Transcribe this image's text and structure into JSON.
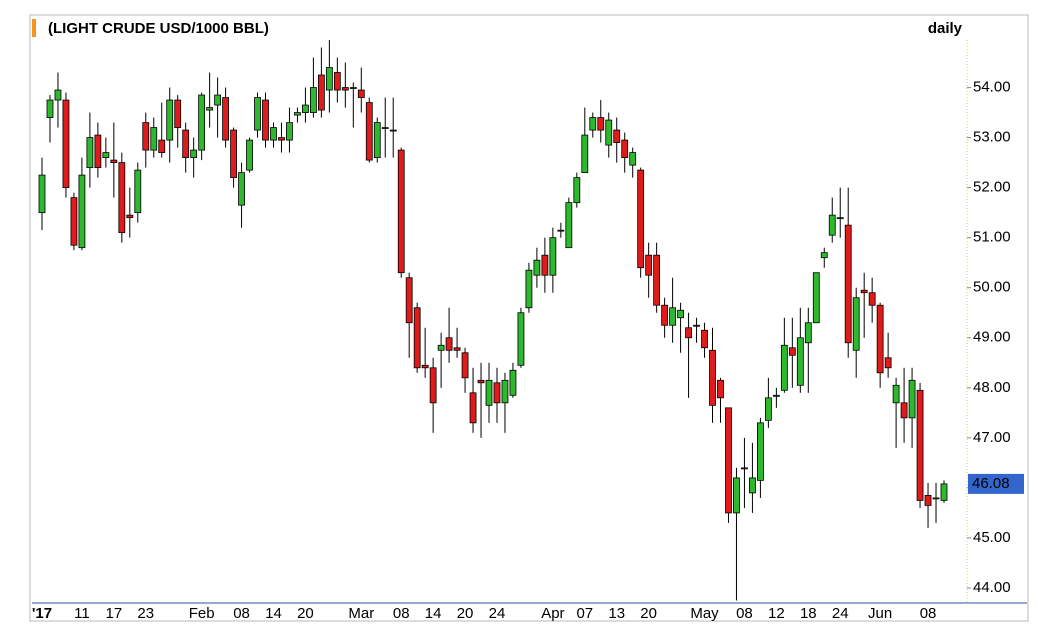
{
  "chart_data": {
    "type": "candlestick",
    "title": "(LIGHT CRUDE USD/1000 BBL)",
    "interval": "daily",
    "up_color": "#2db82d",
    "down_color": "#e01b1b",
    "grid": false,
    "ylim": [
      43.7,
      54.95
    ],
    "yticks": [
      {
        "value": 44,
        "label": "44.00"
      },
      {
        "value": 45,
        "label": "45.00"
      },
      {
        "value": 46,
        "label": "46.00"
      },
      {
        "value": 47,
        "label": "47.00"
      },
      {
        "value": 48,
        "label": "48.00"
      },
      {
        "value": 49,
        "label": "49.00"
      },
      {
        "value": 50,
        "label": "50.00"
      },
      {
        "value": 51,
        "label": "51.00"
      },
      {
        "value": 52,
        "label": "52.00"
      },
      {
        "value": 53,
        "label": "53.00"
      },
      {
        "value": 54,
        "label": "54.00"
      }
    ],
    "categories": [
      "'17",
      null,
      null,
      null,
      null,
      "11",
      null,
      null,
      null,
      "17",
      null,
      null,
      null,
      "23",
      null,
      null,
      null,
      null,
      null,
      null,
      "Feb",
      null,
      null,
      null,
      null,
      "08",
      null,
      null,
      null,
      "14",
      null,
      null,
      null,
      "20",
      null,
      null,
      null,
      null,
      null,
      null,
      "Mar",
      null,
      null,
      null,
      null,
      "08",
      null,
      null,
      null,
      "14",
      null,
      null,
      null,
      "20",
      null,
      null,
      null,
      "24",
      null,
      null,
      null,
      null,
      null,
      null,
      "Apr",
      null,
      null,
      null,
      "07",
      null,
      null,
      null,
      "13",
      null,
      null,
      null,
      "20",
      null,
      null,
      null,
      null,
      null,
      null,
      "May",
      null,
      null,
      null,
      null,
      "08",
      null,
      null,
      null,
      "12",
      null,
      null,
      null,
      "18",
      null,
      null,
      null,
      "24",
      null,
      null,
      null,
      null,
      "Jun",
      null,
      null,
      null,
      null,
      null,
      "08",
      null,
      null
    ],
    "open": [
      51.5,
      53.4,
      53.75,
      53.75,
      51.8,
      50.8,
      52.4,
      53.05,
      52.6,
      52.55,
      52.5,
      51.45,
      51.5,
      53.3,
      52.75,
      52.95,
      52.95,
      53.75,
      53.15,
      52.6,
      52.75,
      53.55,
      53.65,
      53.8,
      53.15,
      51.65,
      52.35,
      53.15,
      53.75,
      52.95,
      53.0,
      52.95,
      53.45,
      53.5,
      53.5,
      54.25,
      53.95,
      54.3,
      54.0,
      53.98,
      53.95,
      53.7,
      52.6,
      53.2,
      53.15,
      52.75,
      50.2,
      49.6,
      48.45,
      48.4,
      48.75,
      49.0,
      48.8,
      48.7,
      47.9,
      48.15,
      47.65,
      48.1,
      47.7,
      47.85,
      48.45,
      49.6,
      50.25,
      50.65,
      50.25,
      51.15,
      50.8,
      51.7,
      52.3,
      53.15,
      53.4,
      52.85,
      53.15,
      52.95,
      52.45,
      52.35,
      50.65,
      50.65,
      49.65,
      49.25,
      49.4,
      49.2,
      49.25,
      49.15,
      48.75,
      48.15,
      47.6,
      45.5,
      46.4,
      45.9,
      46.15,
      47.35,
      47.85,
      47.95,
      48.8,
      48.05,
      48.9,
      49.3,
      50.6,
      51.05,
      51.4,
      51.25,
      48.75,
      49.95,
      49.9,
      49.65,
      48.6,
      47.7,
      47.7,
      47.4,
      47.95,
      45.85,
      45.8,
      45.75
    ],
    "high": [
      52.6,
      53.85,
      54.3,
      53.9,
      51.9,
      52.6,
      53.5,
      53.3,
      53.0,
      53.3,
      52.7,
      52.0,
      52.5,
      53.5,
      53.4,
      53.7,
      54.0,
      53.85,
      53.3,
      53.0,
      53.9,
      54.3,
      54.2,
      54.0,
      53.2,
      52.5,
      53.0,
      53.9,
      53.9,
      53.3,
      53.3,
      53.6,
      53.6,
      54.0,
      54.6,
      54.8,
      54.95,
      54.6,
      54.5,
      54.1,
      54.4,
      53.8,
      53.4,
      53.8,
      53.8,
      52.8,
      50.3,
      49.7,
      49.2,
      48.6,
      49.1,
      49.6,
      49.2,
      48.8,
      48.4,
      48.5,
      48.5,
      48.4,
      48.3,
      48.5,
      49.6,
      50.5,
      50.8,
      51.0,
      51.2,
      51.3,
      51.8,
      52.3,
      53.6,
      53.5,
      53.75,
      53.5,
      53.4,
      53.1,
      52.8,
      52.4,
      50.9,
      50.9,
      49.8,
      50.2,
      49.7,
      49.5,
      49.4,
      49.3,
      49.2,
      48.2,
      47.6,
      46.4,
      47.0,
      46.9,
      47.4,
      48.2,
      48.0,
      49.4,
      49.4,
      49.6,
      49.6,
      50.3,
      50.8,
      51.8,
      52.0,
      52.0,
      50.0,
      50.3,
      50.2,
      49.7,
      49.1,
      48.2,
      48.4,
      48.4,
      48.1,
      46.1,
      46.1,
      46.15
    ],
    "low": [
      51.15,
      52.9,
      53.2,
      51.8,
      50.75,
      50.75,
      52.0,
      52.2,
      52.4,
      51.8,
      50.9,
      51.0,
      51.3,
      52.4,
      52.6,
      52.6,
      52.5,
      52.8,
      52.3,
      52.2,
      52.55,
      53.2,
      53.0,
      52.8,
      52.0,
      51.2,
      52.3,
      53.0,
      52.8,
      52.8,
      52.7,
      52.7,
      53.3,
      53.3,
      53.4,
      53.4,
      53.5,
      53.7,
      53.6,
      53.2,
      53.5,
      52.5,
      52.5,
      52.6,
      52.6,
      50.2,
      48.6,
      48.3,
      48.2,
      47.1,
      48.0,
      48.5,
      48.6,
      47.9,
      47.1,
      47.0,
      47.3,
      47.3,
      47.1,
      47.8,
      48.4,
      49.5,
      50.0,
      49.9,
      49.9,
      51.0,
      50.8,
      51.6,
      52.3,
      53.0,
      52.9,
      52.6,
      52.5,
      52.3,
      52.2,
      50.2,
      49.8,
      49.5,
      49.0,
      48.9,
      48.7,
      47.8,
      48.9,
      48.6,
      47.3,
      47.3,
      45.3,
      43.75,
      45.6,
      45.5,
      45.8,
      47.2,
      47.6,
      47.9,
      48.0,
      47.9,
      47.9,
      49.3,
      50.4,
      50.9,
      51.0,
      48.6,
      48.2,
      49.0,
      49.3,
      48.0,
      48.2,
      46.8,
      46.9,
      46.8,
      45.6,
      45.2,
      45.3,
      45.7
    ],
    "close": [
      52.25,
      53.75,
      53.95,
      52.0,
      50.85,
      52.25,
      53.0,
      52.4,
      52.7,
      52.5,
      51.1,
      51.4,
      52.35,
      52.75,
      53.2,
      52.7,
      53.75,
      53.2,
      52.6,
      52.75,
      53.85,
      53.6,
      53.85,
      52.95,
      52.2,
      52.3,
      52.95,
      53.8,
      52.95,
      53.2,
      52.95,
      53.3,
      53.5,
      53.65,
      54.0,
      53.55,
      54.4,
      53.95,
      53.95,
      54.0,
      53.8,
      52.55,
      53.3,
      53.2,
      53.15,
      50.3,
      49.3,
      48.4,
      48.4,
      47.7,
      48.85,
      48.75,
      48.75,
      48.2,
      47.3,
      48.1,
      48.15,
      47.7,
      48.15,
      48.35,
      49.5,
      50.35,
      50.55,
      50.25,
      51.0,
      51.15,
      51.7,
      52.2,
      53.05,
      53.4,
      53.15,
      53.35,
      52.9,
      52.6,
      52.7,
      50.4,
      50.25,
      49.65,
      49.25,
      49.6,
      49.55,
      49.0,
      49.25,
      48.8,
      47.65,
      47.8,
      45.5,
      46.2,
      46.4,
      46.2,
      47.3,
      47.8,
      47.85,
      48.85,
      48.65,
      49.0,
      49.3,
      50.3,
      50.7,
      51.45,
      51.4,
      48.9,
      49.8,
      49.9,
      49.65,
      48.3,
      48.4,
      48.05,
      47.4,
      48.15,
      45.75,
      45.65,
      45.8,
      46.08
    ]
  }
}
